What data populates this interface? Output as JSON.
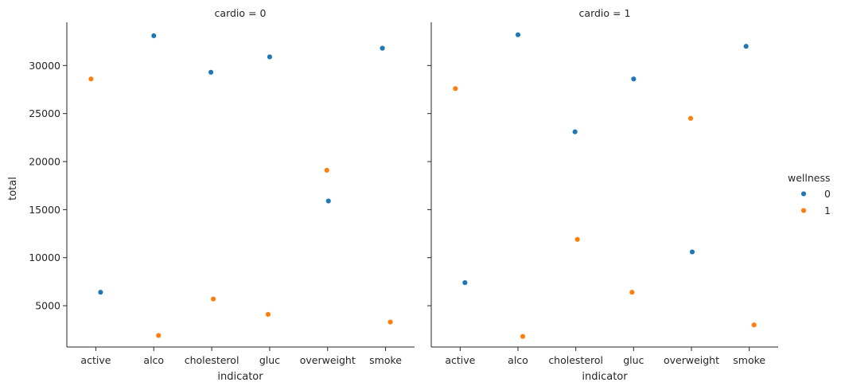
{
  "chart_data": {
    "type": "scatter",
    "xlabel": "indicator",
    "ylabel": "total",
    "categories": [
      "active",
      "alco",
      "cholesterol",
      "gluc",
      "overweight",
      "smoke"
    ],
    "yticks": [
      5000,
      10000,
      15000,
      20000,
      25000,
      30000
    ],
    "ylim": [
      700,
      34500
    ],
    "legend": {
      "title": "wellness",
      "placement": "right",
      "entries": [
        {
          "label": "0",
          "color": "#1f77b4"
        },
        {
          "label": "1",
          "color": "#ff7f0e"
        }
      ]
    },
    "panels": [
      {
        "title": "cardio = 0",
        "series": [
          {
            "name": "0",
            "color": "#1f77b4",
            "values": [
              6400,
              33100,
              29300,
              30900,
              15900,
              31800
            ]
          },
          {
            "name": "1",
            "color": "#ff7f0e",
            "values": [
              28600,
              1900,
              5700,
              4100,
              19100,
              3300
            ]
          }
        ]
      },
      {
        "title": "cardio = 1",
        "series": [
          {
            "name": "0",
            "color": "#1f77b4",
            "values": [
              7400,
              33200,
              23100,
              28600,
              10600,
              32000
            ]
          },
          {
            "name": "1",
            "color": "#ff7f0e",
            "values": [
              27600,
              1800,
              11900,
              6400,
              24500,
              3000
            ]
          }
        ]
      }
    ]
  }
}
